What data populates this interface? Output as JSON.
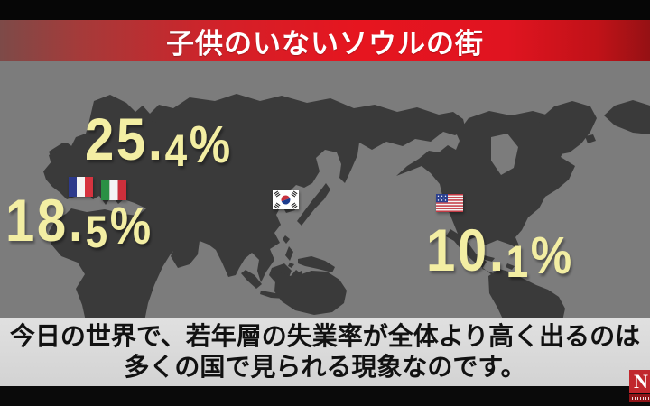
{
  "header": {
    "title": "子供のいないソウルの街"
  },
  "map": {
    "labels": {
      "europe_top": {
        "value": "25.4%"
      },
      "europe_bottom": {
        "value": "18.5%"
      },
      "usa": {
        "value": "10.1%"
      }
    },
    "flags": [
      {
        "id": "france",
        "icon": "france-flag-icon"
      },
      {
        "id": "italy",
        "icon": "italy-flag-icon"
      },
      {
        "id": "south-korea",
        "icon": "south-korea-flag-icon"
      },
      {
        "id": "usa",
        "icon": "usa-flag-icon"
      }
    ]
  },
  "caption": {
    "line1": "今日の世界で、若年層の失業率が全体より高く出るのは",
    "line2": "多くの国で見られる現象なのです。"
  },
  "logo": {
    "letter": "N"
  },
  "colors": {
    "banner_red": "#e01420",
    "banner_red_muted": "#7d4a48",
    "label_yellow": "#f3eea3",
    "ocean_gray": "#7c7c7c",
    "land_gray": "#3a3a3a",
    "caption_bg": "#d8d8d8",
    "logo_red": "#c1272d",
    "title_white": "#ffffff"
  }
}
